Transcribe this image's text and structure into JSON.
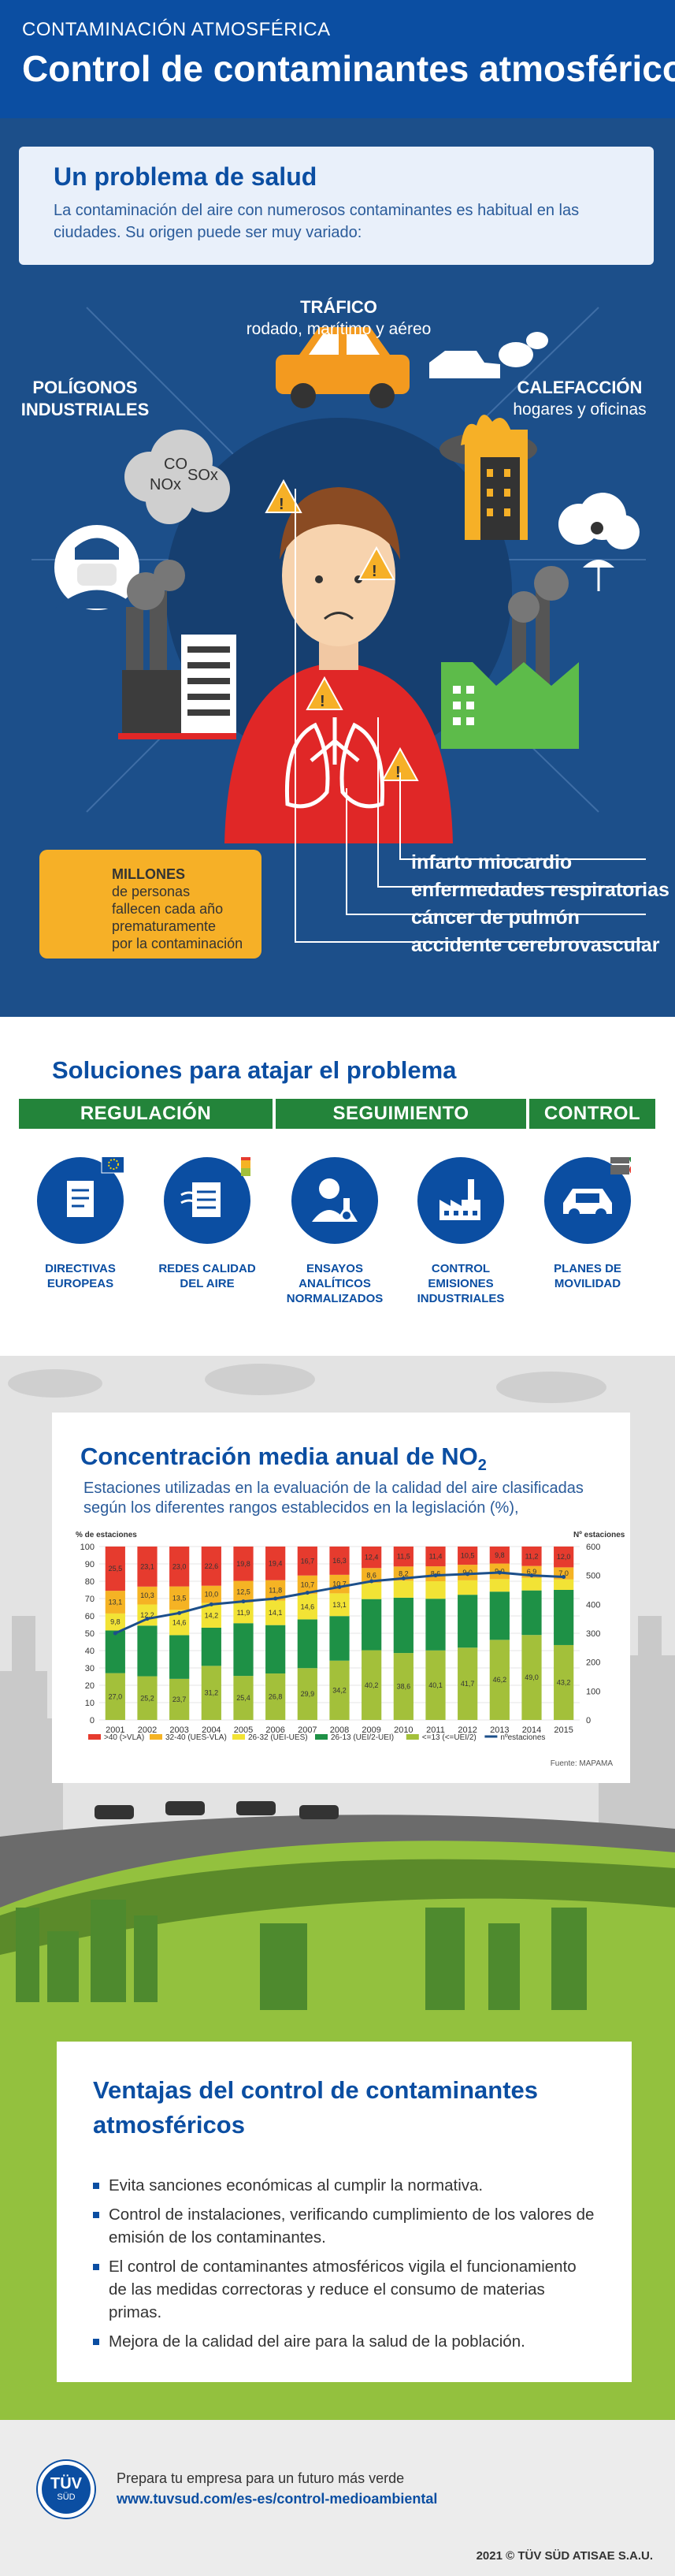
{
  "header": {
    "kicker": "CONTAMINACIÓN ATMOSFÉRICA",
    "title": "Control de contaminantes atmosféricos"
  },
  "health": {
    "title": "Un problema de salud",
    "intro": "La contaminación del aire con numerosos contaminantes es habitual en las ciudades. Su origen puede ser muy variado:",
    "sources": {
      "traffic_title": "TRÁFICO",
      "traffic_sub": "rodado, marítimo y aéreo",
      "industry_line1": "POLÍGONOS",
      "industry_line2": "INDUSTRIALES",
      "heating_title": "CALEFACCIÓN",
      "heating_sub": "hogares y oficinas"
    },
    "gases": [
      "CO",
      "NOx",
      "SOx"
    ],
    "deaths": {
      "bold": "MILLONES",
      "line1": "de personas",
      "line2": "fallecen cada año",
      "line3": "prematuramente",
      "line4": "por la contaminación"
    },
    "diseases": [
      "infarto miocardio",
      "enfermedades respiratorias",
      "cáncer de pulmón",
      "accidente cerebrovascular"
    ]
  },
  "solutions": {
    "title": "Soluciones para atajar el problema",
    "categories": [
      "REGULACIÓN",
      "SEGUIMIENTO",
      "CONTROL"
    ],
    "items": [
      {
        "line1": "DIRECTIVAS",
        "line2": "EUROPEAS",
        "line3": "",
        "icon": "document-icon"
      },
      {
        "line1": "REDES CALIDAD",
        "line2": "DEL AIRE",
        "line3": "",
        "icon": "air-network-icon"
      },
      {
        "line1": "ENSAYOS",
        "line2": "ANALÍTICOS",
        "line3": "NORMALIZADOS",
        "icon": "lab-scientist-icon"
      },
      {
        "line1": "CONTROL",
        "line2": "EMISIONES",
        "line3": "INDUSTRIALES",
        "icon": "factory-icon"
      },
      {
        "line1": "PLANES DE",
        "line2": "MOVILIDAD",
        "line3": "",
        "icon": "car-icon"
      }
    ]
  },
  "chart": {
    "title": "Concentración media anual de NO",
    "title_sub": "2",
    "subtitle": "Estaciones utilizadas en la evaluación de la calidad del aire clasificadas según los diferentes rangos establecidos en la legislación (%),",
    "source": "Fuente: MAPAMA"
  },
  "chart_data": {
    "type": "bar",
    "stacked": true,
    "ylabel": "% de estaciones",
    "y2label": "Nº estaciones",
    "ylim": [
      0,
      100
    ],
    "y2lim": [
      0,
      600
    ],
    "yticks": [
      0,
      10,
      20,
      30,
      40,
      50,
      60,
      70,
      80,
      90,
      100
    ],
    "y2ticks": [
      0,
      100,
      200,
      300,
      400,
      500,
      600
    ],
    "categories": [
      "2001",
      "2002",
      "2003",
      "2004",
      "2005",
      "2006",
      "2007",
      "2008",
      "2009",
      "2010",
      "2011",
      "2012",
      "2013",
      "2014",
      "2015"
    ],
    "series": [
      {
        "name": "<=13 (<=UEI/2)",
        "color": "#a3c03a",
        "values": [
          27.0,
          25.2,
          23.7,
          31.2,
          25.4,
          26.8,
          29.9,
          34.2,
          40.2,
          38.6,
          40.1,
          41.7,
          46.2,
          49.0,
          43.2
        ],
        "labels": [
          "27,0",
          "25,2",
          "23,7",
          "31,2",
          "25,4",
          "26,8",
          "29,9",
          "34,2",
          "40,2",
          "38,6",
          "40,1",
          "41,7",
          "46,2",
          "49,0",
          "43,2"
        ]
      },
      {
        "name": "26-13 (UEI/2-UEI)",
        "color": "#1e9146",
        "values": [
          24.6,
          29.2,
          25.2,
          22.0,
          30.4,
          27.9,
          28.1,
          25.7,
          29.5,
          31.9,
          29.8,
          30.5,
          27.8,
          25.7,
          31.8
        ],
        "labels": [
          "",
          "",
          "",
          "",
          "",
          "",
          "",
          "",
          "",
          "",
          "",
          "",
          "",
          "",
          ""
        ]
      },
      {
        "name": "26-32 (UEI-UES)",
        "color": "#f2e335",
        "values": [
          9.8,
          12.2,
          14.6,
          14.2,
          11.9,
          14.1,
          14.6,
          13.1,
          9.3,
          9.8,
          10.1,
          8.3,
          7.2,
          7.2,
          6.0
        ],
        "labels": [
          "9,8",
          "12,2",
          "14,6",
          "14,2",
          "11,9",
          "14,1",
          "14,6",
          "13,1",
          "",
          "",
          "",
          "",
          "",
          "",
          ""
        ]
      },
      {
        "name": "32-40 (UES-VLA)",
        "color": "#f5b324",
        "values": [
          13.1,
          10.3,
          13.5,
          10.0,
          12.5,
          11.8,
          10.7,
          10.7,
          8.6,
          8.2,
          8.6,
          9.0,
          9.0,
          6.9,
          7.0
        ],
        "labels": [
          "13,1",
          "10,3",
          "13,5",
          "10,0",
          "12,5",
          "11,8",
          "10,7",
          "10,7",
          "8,6",
          "8,2",
          "8,6",
          "9,0",
          "9,0",
          "6,9",
          "7,0"
        ]
      },
      {
        "name": ">40 (>VLA)",
        "color": "#e63b2e",
        "values": [
          25.5,
          23.1,
          23.0,
          22.6,
          19.8,
          19.4,
          16.7,
          16.3,
          12.4,
          11.5,
          11.4,
          10.5,
          9.8,
          11.2,
          12.0
        ],
        "labels": [
          "25,5",
          "23,1",
          "23,0",
          "22,6",
          "19,8",
          "19,4",
          "16,7",
          "16,3",
          "12,4",
          "11,5",
          "11,4",
          "10,5",
          "9,8",
          "11,2",
          "12,0"
        ]
      }
    ],
    "line": {
      "name": "nºestaciones",
      "color": "#1c4f8a",
      "values": [
        300,
        350,
        370,
        400,
        410,
        420,
        440,
        460,
        480,
        490,
        500,
        505,
        510,
        500,
        495
      ]
    }
  },
  "advantages": {
    "title_line1": "Ventajas del control de contaminantes",
    "title_line2": "atmosféricos",
    "items": [
      "Evita sanciones económicas al cumplir la normativa.",
      "Control de instalaciones, verificando cumplimiento de los valores de emisión de los contaminantes.",
      "El control de contaminantes atmosféricos vigila el funcionamiento de las medidas correctoras y reduce el consumo de materias primas.",
      "Mejora de la calidad del aire para la salud de la población."
    ]
  },
  "footer": {
    "logo_text": "TÜV",
    "logo_sub": "SÜD",
    "tagline": "Prepara tu empresa para un futuro más verde",
    "url": "www.tuvsud.com/es-es/control-medioambiental",
    "copyright": "2021 © TÜV SÜD ATISAE S.A.U."
  },
  "colors": {
    "brand_blue": "#0b4ea2",
    "health_bg": "#1c4f8a",
    "green": "#23843a",
    "lime": "#93c13e",
    "warning": "#f6b027"
  }
}
